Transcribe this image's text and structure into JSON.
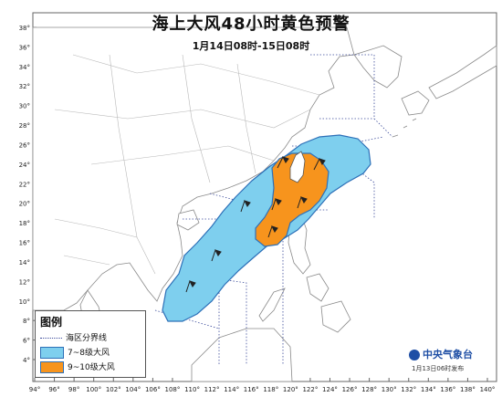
{
  "title": "海上大风48小时黄色预警",
  "subtitle": "1月14日08时-15日08时",
  "lat_labels": [
    "4°",
    "6°",
    "8°",
    "10°",
    "12°",
    "14°",
    "16°",
    "18°",
    "20°",
    "22°",
    "24°",
    "26°",
    "28°",
    "30°",
    "32°",
    "34°",
    "36°",
    "38°"
  ],
  "lon_labels": [
    "94°",
    "96°",
    "98°",
    "100°",
    "102°",
    "104°",
    "106°",
    "108°",
    "110°",
    "112°",
    "114°",
    "116°",
    "118°",
    "120°",
    "122°",
    "124°",
    "126°",
    "128°",
    "130°",
    "132°",
    "134°",
    "136°",
    "138°",
    "140°"
  ],
  "legend": {
    "title": "图例",
    "items": [
      {
        "label": "海区分界线",
        "kind": "boundary",
        "color": "#3a4a9a"
      },
      {
        "label": "7~8级大风",
        "kind": "zone",
        "color": "#7ecfee"
      },
      {
        "label": "9~10级大风",
        "kind": "zone",
        "color": "#f7941d"
      }
    ]
  },
  "logo": "中央气象台",
  "release": "1月13日06时发布",
  "colors": {
    "sea": "#ffffff",
    "land": "#ffffff",
    "zone_7_8": "#7ecfee",
    "zone_9_10": "#f7941d",
    "outline": "#2d70b8"
  }
}
